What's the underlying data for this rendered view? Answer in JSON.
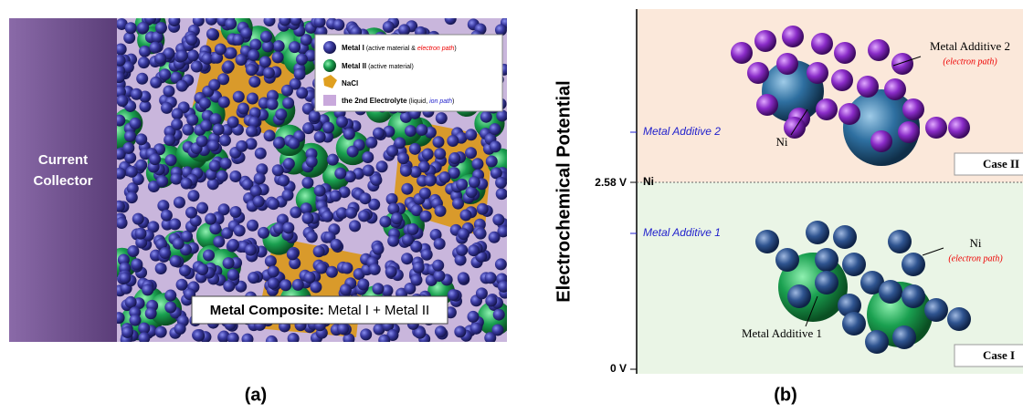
{
  "panel_a": {
    "current_collector": [
      "Current",
      "Collector"
    ],
    "legend": [
      {
        "bold": "Metal I",
        "text": " (active material & ",
        "highlight": "electron path",
        "end": ")"
      },
      {
        "bold": "Metal II",
        "text": " (active material)"
      },
      {
        "bold": "NaCl"
      },
      {
        "bold": "the 2nd Electrolyte",
        "text": " (liquid, ",
        "highlight": "ion path",
        "end": ")"
      }
    ],
    "composite_label": {
      "bold": "Metal Composite:",
      "text": " Metal I + Metal II"
    },
    "caption": "(a)"
  },
  "panel_b": {
    "axis_title": "Electrochemical Potential",
    "axis_labels": {
      "upper": "2.58 V",
      "lower": "0 V",
      "level": "Ni"
    },
    "levels": [
      "Metal Additive 2",
      "Metal Additive 1"
    ],
    "case_2": {
      "additive": "Metal Additive 2",
      "additive_note": "(electron path)",
      "core": "Ni",
      "case": "Case II"
    },
    "case_1": {
      "additive": "Ni",
      "additive_note": "(electron path)",
      "core": "Metal Additive 1",
      "case": "Case I"
    },
    "caption": "(b)"
  }
}
